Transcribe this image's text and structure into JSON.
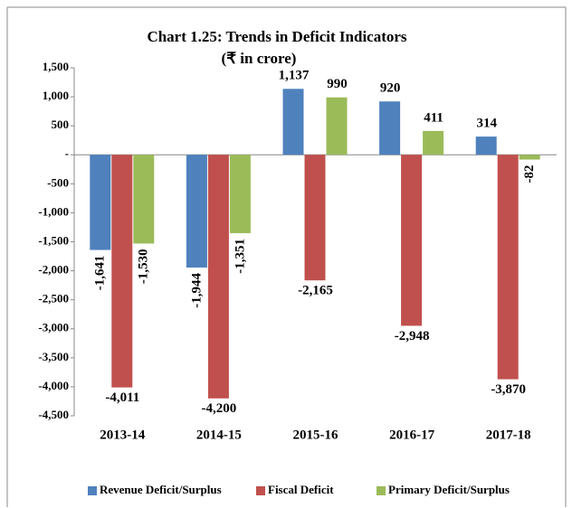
{
  "chart_data": {
    "type": "bar",
    "title": "Chart 1.25: Trends in Deficit Indicators",
    "subtitle": "(₹ in crore)",
    "categories": [
      "2013-14",
      "2014-15",
      "2015-16",
      "2016-17",
      "2017-18"
    ],
    "series": [
      {
        "name": "Revenue Deficit/Surplus",
        "color": "#4f81bd",
        "values": [
          -1641,
          -1944,
          1137,
          920,
          314
        ],
        "value_labels": [
          "-1,641",
          "-1,944",
          "1,137",
          "920",
          "314"
        ]
      },
      {
        "name": "Fiscal Deficit",
        "color": "#c0504d",
        "values": [
          -4011,
          -4200,
          -2165,
          -2948,
          -3870
        ],
        "value_labels": [
          "-4,011",
          "-4,200",
          "-2,165",
          "-2,948",
          "-3,870"
        ]
      },
      {
        "name": "Primary Deficit/Surplus",
        "color": "#9bbb59",
        "values": [
          -1530,
          -1351,
          990,
          411,
          -82
        ],
        "value_labels": [
          "-1,530",
          "-1,351",
          "990",
          "411",
          "-82"
        ]
      }
    ],
    "ylim": [
      -4500,
      1500
    ],
    "yticks": [
      {
        "value": 1500,
        "label": "1,500"
      },
      {
        "value": 1000,
        "label": "1,000"
      },
      500,
      {
        "value": 0,
        "label": "-"
      },
      -500,
      {
        "value": -1000,
        "label": "-1,000"
      },
      {
        "value": -1500,
        "label": "-1,500"
      },
      {
        "value": -2000,
        "label": "-2,000"
      },
      {
        "value": -2500,
        "label": "-2,500"
      },
      {
        "value": -3000,
        "label": "-3,000"
      },
      {
        "value": -3500,
        "label": "-3,500"
      },
      {
        "value": -4000,
        "label": "-4,000"
      },
      {
        "value": -4500,
        "label": "-4,500"
      }
    ],
    "legend": "bottom",
    "grid": false
  }
}
